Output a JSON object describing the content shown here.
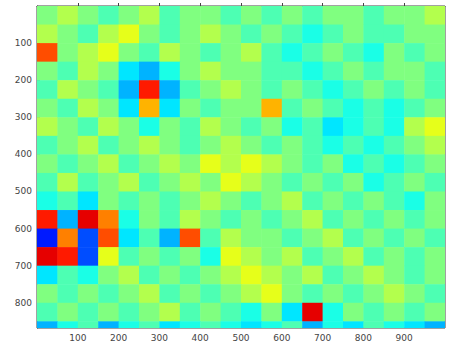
{
  "chart_data": {
    "type": "heatmap",
    "xlim": [
      0,
      1000
    ],
    "ylim": [
      0,
      868
    ],
    "xticks": [
      100,
      200,
      300,
      400,
      500,
      600,
      700,
      800,
      900
    ],
    "yticks": [
      100,
      200,
      300,
      400,
      500,
      600,
      700,
      800
    ],
    "clim": [
      0,
      1
    ],
    "x_edges": [
      0,
      50,
      100,
      150,
      200,
      250,
      300,
      350,
      400,
      450,
      500,
      550,
      600,
      650,
      700,
      750,
      800,
      850,
      900,
      950,
      1000
    ],
    "y_edges": [
      0,
      50,
      100,
      150,
      200,
      250,
      300,
      350,
      400,
      450,
      500,
      550,
      600,
      650,
      700,
      750,
      800,
      850,
      868
    ],
    "cells": [
      [
        0.5,
        0.55,
        0.5,
        0.45,
        0.5,
        0.55,
        0.45,
        0.5,
        0.5,
        0.45,
        0.5,
        0.45,
        0.5,
        0.45,
        0.5,
        0.5,
        0.45,
        0.5,
        0.5,
        0.55
      ],
      [
        0.55,
        0.5,
        0.45,
        0.55,
        0.6,
        0.5,
        0.45,
        0.5,
        0.55,
        0.5,
        0.45,
        0.5,
        0.45,
        0.4,
        0.45,
        0.5,
        0.45,
        0.45,
        0.5,
        0.5
      ],
      [
        0.8,
        0.5,
        0.55,
        0.6,
        0.5,
        0.45,
        0.55,
        0.5,
        0.45,
        0.5,
        0.55,
        0.45,
        0.4,
        0.45,
        0.5,
        0.45,
        0.4,
        0.5,
        0.45,
        0.5
      ],
      [
        0.5,
        0.45,
        0.55,
        0.5,
        0.35,
        0.3,
        0.4,
        0.5,
        0.55,
        0.5,
        0.5,
        0.45,
        0.45,
        0.4,
        0.45,
        0.5,
        0.45,
        0.5,
        0.5,
        0.45
      ],
      [
        0.45,
        0.55,
        0.5,
        0.45,
        0.3,
        0.85,
        0.3,
        0.45,
        0.5,
        0.55,
        0.5,
        0.45,
        0.5,
        0.45,
        0.4,
        0.45,
        0.5,
        0.45,
        0.5,
        0.45
      ],
      [
        0.5,
        0.45,
        0.55,
        0.5,
        0.35,
        0.7,
        0.35,
        0.5,
        0.45,
        0.5,
        0.5,
        0.7,
        0.45,
        0.5,
        0.45,
        0.4,
        0.45,
        0.4,
        0.45,
        0.5
      ],
      [
        0.55,
        0.5,
        0.45,
        0.55,
        0.5,
        0.4,
        0.5,
        0.45,
        0.55,
        0.5,
        0.45,
        0.5,
        0.4,
        0.45,
        0.35,
        0.4,
        0.45,
        0.4,
        0.55,
        0.6
      ],
      [
        0.45,
        0.5,
        0.55,
        0.45,
        0.5,
        0.55,
        0.5,
        0.45,
        0.5,
        0.55,
        0.5,
        0.45,
        0.5,
        0.45,
        0.4,
        0.45,
        0.4,
        0.45,
        0.5,
        0.55
      ],
      [
        0.5,
        0.45,
        0.5,
        0.55,
        0.45,
        0.5,
        0.55,
        0.5,
        0.6,
        0.55,
        0.6,
        0.55,
        0.5,
        0.45,
        0.5,
        0.4,
        0.45,
        0.4,
        0.45,
        0.5
      ],
      [
        0.45,
        0.55,
        0.45,
        0.5,
        0.55,
        0.45,
        0.5,
        0.55,
        0.5,
        0.6,
        0.55,
        0.5,
        0.45,
        0.5,
        0.45,
        0.5,
        0.4,
        0.45,
        0.5,
        0.45
      ],
      [
        0.4,
        0.45,
        0.35,
        0.5,
        0.45,
        0.5,
        0.45,
        0.5,
        0.55,
        0.5,
        0.45,
        0.5,
        0.55,
        0.45,
        0.5,
        0.45,
        0.5,
        0.45,
        0.4,
        0.5
      ],
      [
        0.85,
        0.3,
        0.9,
        0.75,
        0.4,
        0.5,
        0.45,
        0.55,
        0.5,
        0.45,
        0.5,
        0.45,
        0.5,
        0.55,
        0.45,
        0.5,
        0.45,
        0.5,
        0.45,
        0.5
      ],
      [
        0.15,
        0.75,
        0.2,
        0.8,
        0.35,
        0.45,
        0.3,
        0.8,
        0.45,
        0.55,
        0.5,
        0.5,
        0.45,
        0.5,
        0.55,
        0.45,
        0.5,
        0.45,
        0.5,
        0.45
      ],
      [
        0.9,
        0.85,
        0.2,
        0.6,
        0.45,
        0.5,
        0.45,
        0.5,
        0.4,
        0.6,
        0.55,
        0.5,
        0.55,
        0.45,
        0.5,
        0.55,
        0.45,
        0.5,
        0.45,
        0.5
      ],
      [
        0.35,
        0.45,
        0.4,
        0.5,
        0.55,
        0.45,
        0.5,
        0.45,
        0.5,
        0.55,
        0.6,
        0.55,
        0.5,
        0.55,
        0.45,
        0.5,
        0.55,
        0.5,
        0.45,
        0.5
      ],
      [
        0.5,
        0.45,
        0.5,
        0.45,
        0.5,
        0.55,
        0.45,
        0.5,
        0.45,
        0.5,
        0.55,
        0.6,
        0.5,
        0.45,
        0.5,
        0.45,
        0.5,
        0.55,
        0.5,
        0.45
      ],
      [
        0.45,
        0.5,
        0.45,
        0.5,
        0.45,
        0.5,
        0.55,
        0.45,
        0.5,
        0.45,
        0.4,
        0.5,
        0.35,
        0.9,
        0.4,
        0.5,
        0.45,
        0.5,
        0.45,
        0.5
      ],
      [
        0.3,
        0.4,
        0.45,
        0.3,
        0.4,
        0.45,
        0.35,
        0.4,
        0.45,
        0.4,
        0.35,
        0.4,
        0.45,
        0.3,
        0.4,
        0.35,
        0.45,
        0.4,
        0.35,
        0.3
      ]
    ]
  }
}
